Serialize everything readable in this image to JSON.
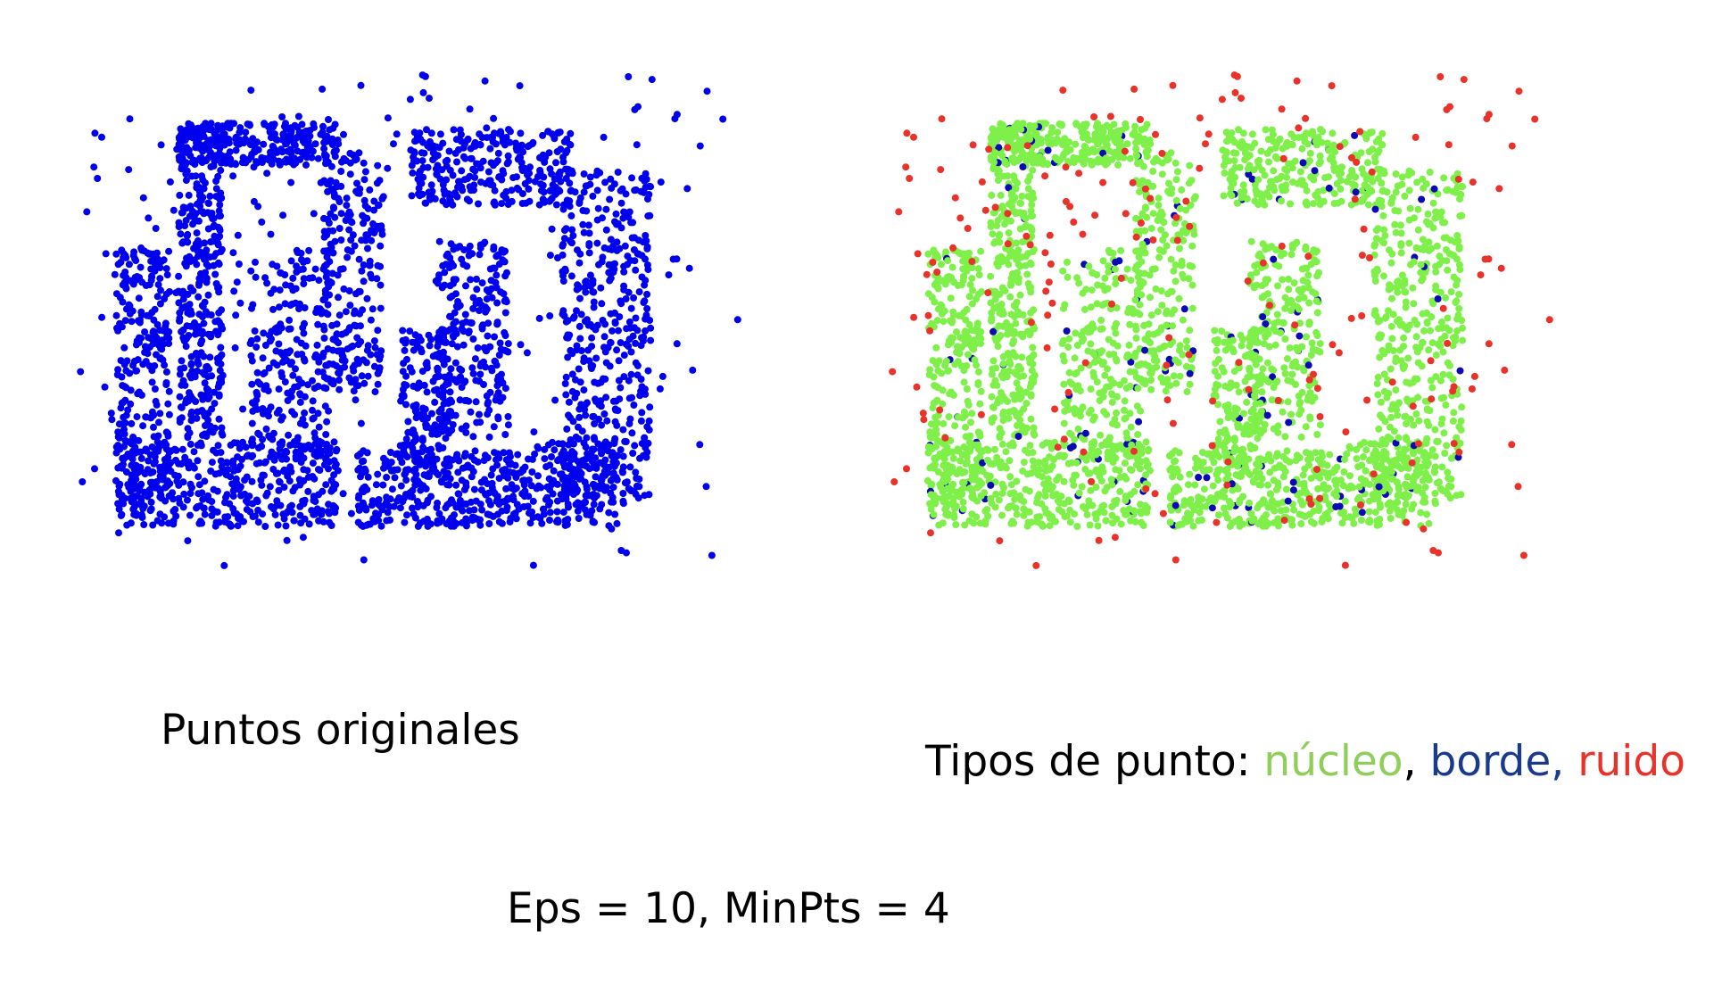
{
  "captions": {
    "original_points": "Puntos originales",
    "point_types_prefix": "Tipos de punto: ",
    "core": "núcleo",
    "sep1": ", ",
    "border": "borde",
    "sep2": ", ",
    "noise": "ruido",
    "parameters": "Eps = 10, MinPts = 4"
  },
  "colors": {
    "original": "#0000ee",
    "core": "#7ff04a",
    "border": "#0a0ab4",
    "noise": "#e8322a",
    "caption_core": "#8fce5a",
    "caption_border": "#1a3a8c",
    "caption_noise": "#e8322a",
    "text": "#000000"
  }
}
